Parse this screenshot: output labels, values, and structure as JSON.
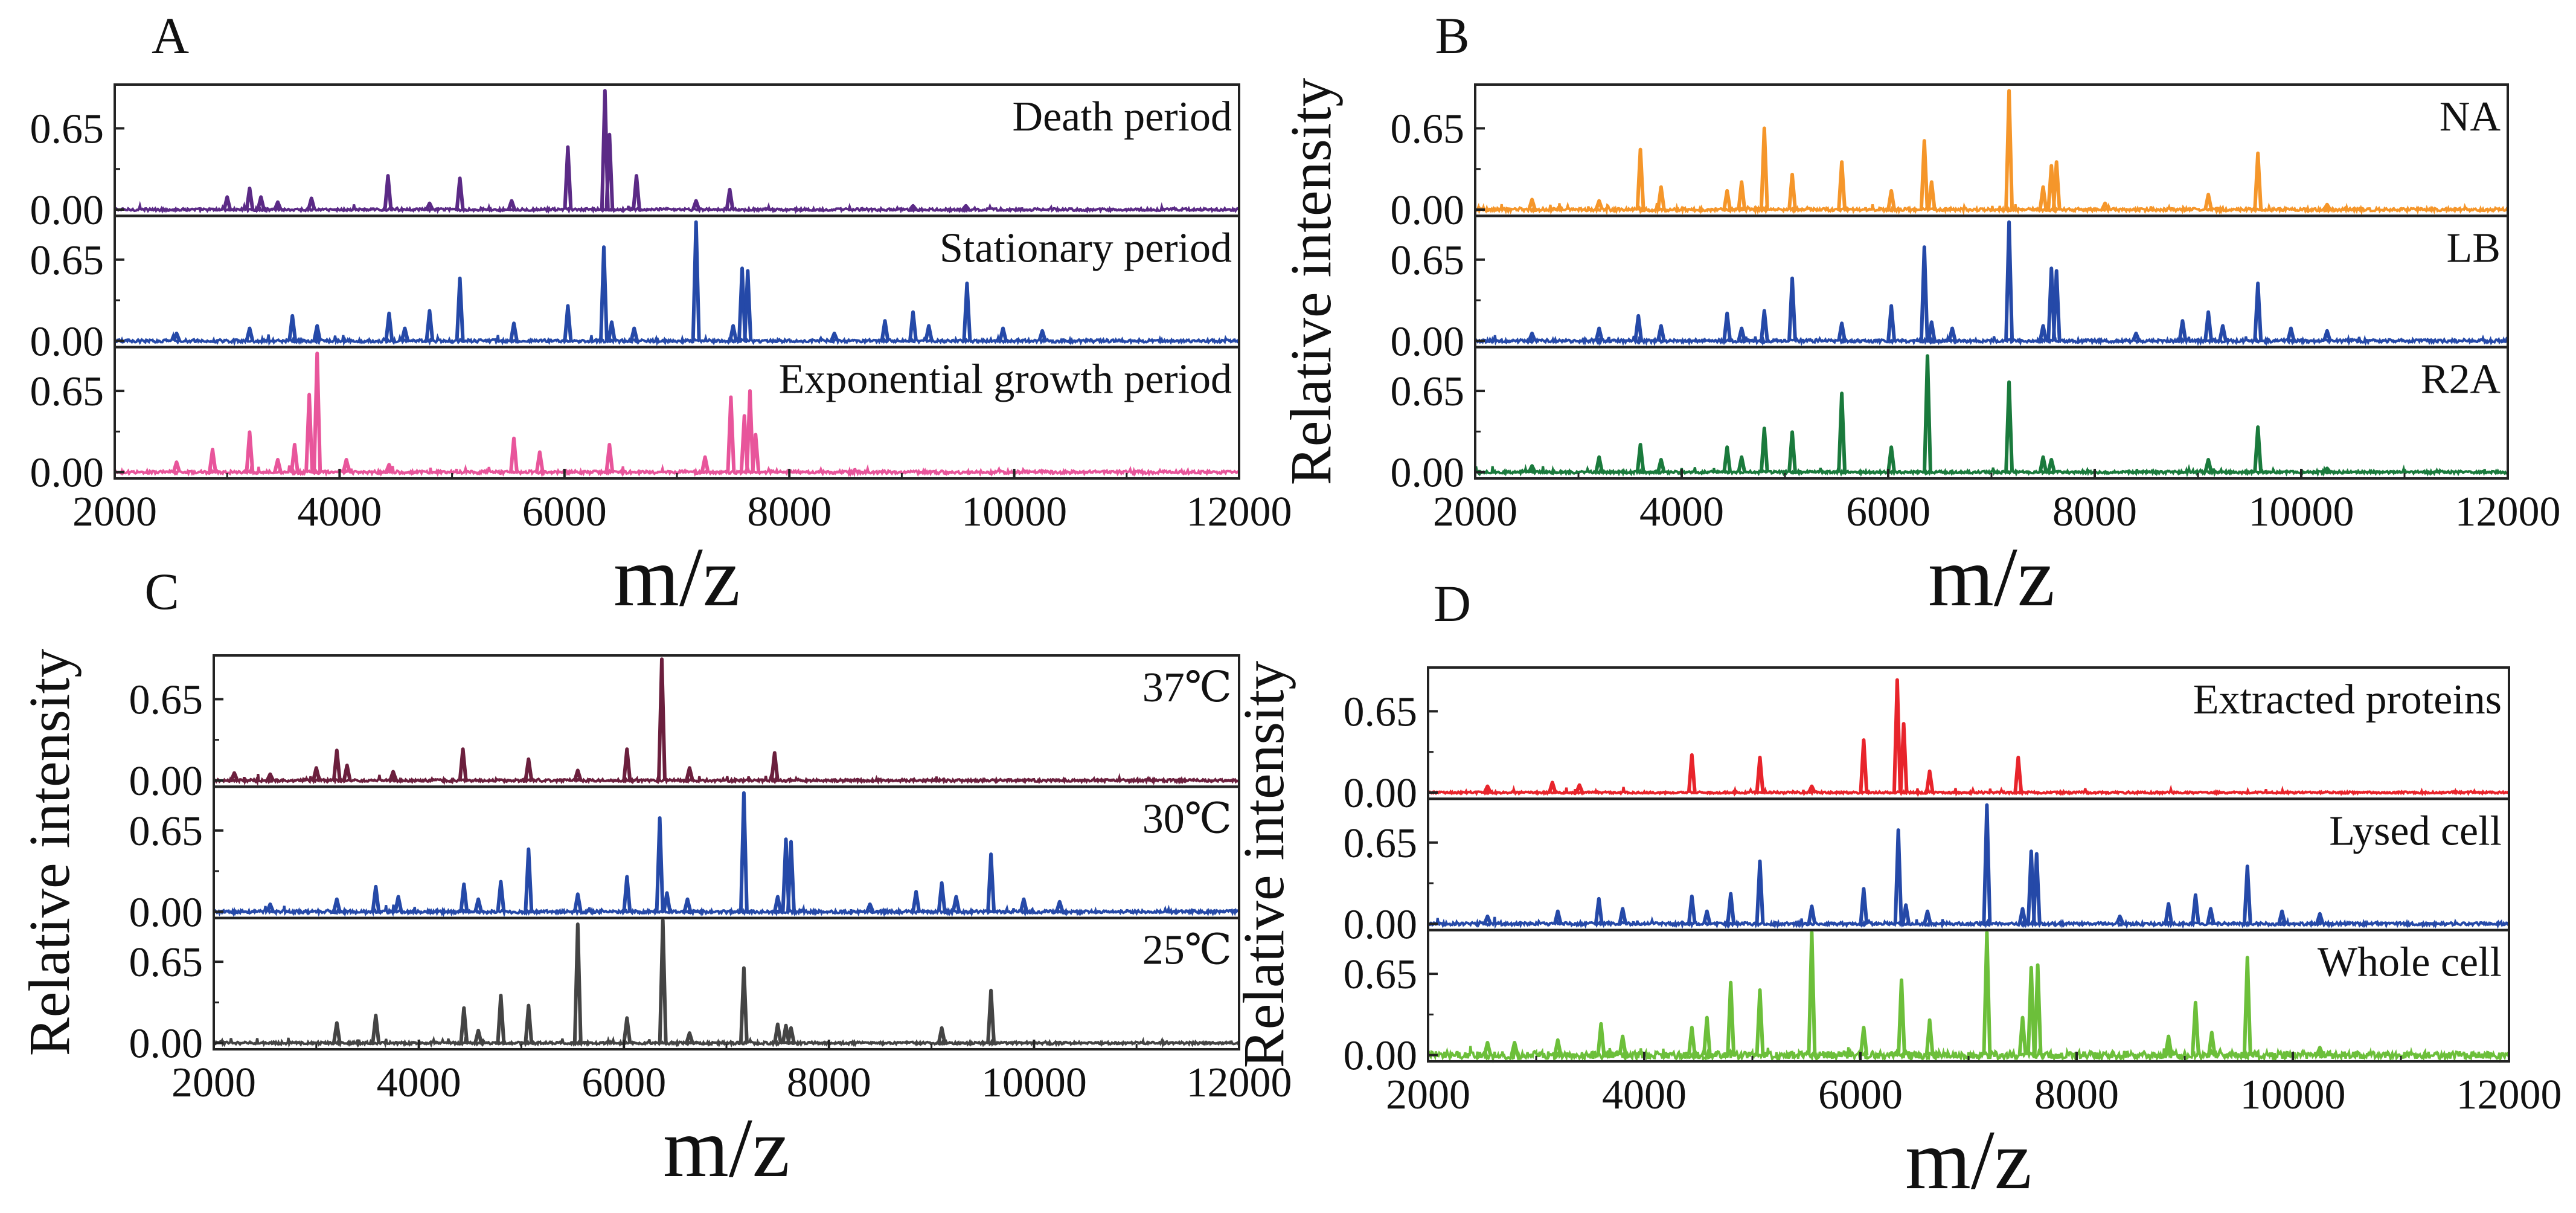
{
  "figure": {
    "panel_letters": [
      "A",
      "B",
      "C",
      "D"
    ],
    "ylabel": "Relative intensity",
    "xlabel": "m/z",
    "xticks": [
      "2000",
      "4000",
      "6000",
      "8000",
      "10000",
      "12000"
    ],
    "yticks": [
      "0.65",
      "0.00"
    ]
  },
  "chart_data": [
    {
      "panel": "A",
      "type": "line",
      "title": "",
      "xlabel": "m/z",
      "ylabel": "Relative intensity",
      "xlim": [
        2000,
        12000
      ],
      "ylim": [
        -0.05,
        1.0
      ],
      "series": [
        {
          "name": "Death period",
          "color": "#5b2a86",
          "baseline_noise": 0.01,
          "peaks": [
            [
              3000,
              0.1
            ],
            [
              3200,
              0.17
            ],
            [
              3300,
              0.1
            ],
            [
              3450,
              0.06
            ],
            [
              3750,
              0.09
            ],
            [
              4430,
              0.27
            ],
            [
              4800,
              0.05
            ],
            [
              5070,
              0.25
            ],
            [
              5530,
              0.07
            ],
            [
              6030,
              0.5
            ],
            [
              6360,
              0.95
            ],
            [
              6400,
              0.6
            ],
            [
              6640,
              0.27
            ],
            [
              7170,
              0.07
            ],
            [
              7470,
              0.16
            ],
            [
              9100,
              0.03
            ],
            [
              9570,
              0.03
            ]
          ]
        },
        {
          "name": "Stationary period",
          "color": "#2549a8",
          "baseline_noise": 0.012,
          "peaks": [
            [
              2550,
              0.06
            ],
            [
              3200,
              0.1
            ],
            [
              3580,
              0.2
            ],
            [
              3800,
              0.12
            ],
            [
              4440,
              0.22
            ],
            [
              4580,
              0.1
            ],
            [
              4800,
              0.24
            ],
            [
              5070,
              0.5
            ],
            [
              5550,
              0.14
            ],
            [
              6030,
              0.28
            ],
            [
              6350,
              0.75
            ],
            [
              6420,
              0.15
            ],
            [
              6620,
              0.1
            ],
            [
              7170,
              0.95
            ],
            [
              7500,
              0.12
            ],
            [
              7580,
              0.58
            ],
            [
              7630,
              0.56
            ],
            [
              8400,
              0.06
            ],
            [
              8850,
              0.16
            ],
            [
              9100,
              0.23
            ],
            [
              9240,
              0.12
            ],
            [
              9580,
              0.46
            ],
            [
              9900,
              0.1
            ],
            [
              10250,
              0.08
            ]
          ]
        },
        {
          "name": "Exponential growth period",
          "color": "#e8559b",
          "baseline_noise": 0.012,
          "peaks": [
            [
              2550,
              0.08
            ],
            [
              2870,
              0.18
            ],
            [
              3200,
              0.32
            ],
            [
              3450,
              0.1
            ],
            [
              3600,
              0.22
            ],
            [
              3730,
              0.62
            ],
            [
              3800,
              0.95
            ],
            [
              4060,
              0.1
            ],
            [
              4440,
              0.06
            ],
            [
              5550,
              0.27
            ],
            [
              5780,
              0.16
            ],
            [
              6400,
              0.22
            ],
            [
              7250,
              0.12
            ],
            [
              7480,
              0.6
            ],
            [
              7600,
              0.45
            ],
            [
              7650,
              0.65
            ],
            [
              7700,
              0.3
            ]
          ]
        }
      ]
    },
    {
      "panel": "B",
      "type": "line",
      "title": "",
      "xlabel": "m/z",
      "ylabel": "Relative intensity",
      "xlim": [
        2000,
        12000
      ],
      "ylim": [
        -0.05,
        1.0
      ],
      "series": [
        {
          "name": "NA",
          "color": "#f5962a",
          "baseline_noise": 0.012,
          "peaks": [
            [
              2550,
              0.08
            ],
            [
              3200,
              0.07
            ],
            [
              3600,
              0.48
            ],
            [
              3800,
              0.18
            ],
            [
              4440,
              0.15
            ],
            [
              4580,
              0.22
            ],
            [
              4800,
              0.65
            ],
            [
              5070,
              0.28
            ],
            [
              5550,
              0.38
            ],
            [
              6030,
              0.15
            ],
            [
              6350,
              0.55
            ],
            [
              6420,
              0.22
            ],
            [
              7170,
              0.95
            ],
            [
              7500,
              0.18
            ],
            [
              7580,
              0.35
            ],
            [
              7630,
              0.38
            ],
            [
              8100,
              0.05
            ],
            [
              9100,
              0.12
            ],
            [
              9580,
              0.45
            ],
            [
              10250,
              0.04
            ]
          ]
        },
        {
          "name": "LB",
          "color": "#2549a8",
          "baseline_noise": 0.012,
          "peaks": [
            [
              2550,
              0.06
            ],
            [
              3200,
              0.1
            ],
            [
              3580,
              0.2
            ],
            [
              3800,
              0.12
            ],
            [
              4440,
              0.22
            ],
            [
              4580,
              0.1
            ],
            [
              4800,
              0.24
            ],
            [
              5070,
              0.5
            ],
            [
              5550,
              0.14
            ],
            [
              6030,
              0.28
            ],
            [
              6350,
              0.75
            ],
            [
              6420,
              0.15
            ],
            [
              6620,
              0.1
            ],
            [
              7170,
              0.95
            ],
            [
              7500,
              0.12
            ],
            [
              7580,
              0.58
            ],
            [
              7630,
              0.56
            ],
            [
              8400,
              0.06
            ],
            [
              8850,
              0.16
            ],
            [
              9100,
              0.23
            ],
            [
              9240,
              0.12
            ],
            [
              9580,
              0.46
            ],
            [
              9900,
              0.1
            ],
            [
              10250,
              0.08
            ]
          ]
        },
        {
          "name": "R2A",
          "color": "#1a7a3c",
          "baseline_noise": 0.01,
          "peaks": [
            [
              2550,
              0.05
            ],
            [
              3200,
              0.12
            ],
            [
              3600,
              0.22
            ],
            [
              3800,
              0.1
            ],
            [
              4440,
              0.2
            ],
            [
              4580,
              0.12
            ],
            [
              4800,
              0.35
            ],
            [
              5070,
              0.32
            ],
            [
              5550,
              0.63
            ],
            [
              6030,
              0.2
            ],
            [
              6380,
              0.93
            ],
            [
              7170,
              0.72
            ],
            [
              7500,
              0.12
            ],
            [
              7580,
              0.1
            ],
            [
              9100,
              0.1
            ],
            [
              9580,
              0.36
            ],
            [
              10250,
              0.03
            ]
          ]
        }
      ]
    },
    {
      "panel": "C",
      "type": "line",
      "title": "",
      "xlabel": "m/z",
      "ylabel": "Relative intensity",
      "xlim": [
        2000,
        12000
      ],
      "ylim": [
        -0.05,
        1.0
      ],
      "series": [
        {
          "name": "37℃",
          "color": "#6b1f3d",
          "baseline_noise": 0.01,
          "peaks": [
            [
              2200,
              0.06
            ],
            [
              2550,
              0.05
            ],
            [
              3000,
              0.1
            ],
            [
              3200,
              0.24
            ],
            [
              3300,
              0.12
            ],
            [
              3750,
              0.07
            ],
            [
              4430,
              0.25
            ],
            [
              5070,
              0.17
            ],
            [
              5550,
              0.08
            ],
            [
              6030,
              0.25
            ],
            [
              6370,
              0.97
            ],
            [
              6640,
              0.1
            ],
            [
              7470,
              0.22
            ]
          ]
        },
        {
          "name": "30℃",
          "color": "#2549a8",
          "baseline_noise": 0.012,
          "peaks": [
            [
              2550,
              0.06
            ],
            [
              3200,
              0.1
            ],
            [
              3580,
              0.2
            ],
            [
              3800,
              0.12
            ],
            [
              4440,
              0.22
            ],
            [
              4580,
              0.1
            ],
            [
              4800,
              0.24
            ],
            [
              5070,
              0.5
            ],
            [
              5550,
              0.14
            ],
            [
              6030,
              0.28
            ],
            [
              6350,
              0.75
            ],
            [
              6420,
              0.15
            ],
            [
              6620,
              0.1
            ],
            [
              7170,
              0.95
            ],
            [
              7500,
              0.12
            ],
            [
              7580,
              0.58
            ],
            [
              7630,
              0.56
            ],
            [
              8400,
              0.06
            ],
            [
              8850,
              0.16
            ],
            [
              9100,
              0.23
            ],
            [
              9240,
              0.12
            ],
            [
              9580,
              0.46
            ],
            [
              9900,
              0.1
            ],
            [
              10250,
              0.08
            ]
          ]
        },
        {
          "name": "25℃",
          "color": "#444444",
          "baseline_noise": 0.01,
          "peaks": [
            [
              3200,
              0.16
            ],
            [
              3580,
              0.22
            ],
            [
              4440,
              0.28
            ],
            [
              4580,
              0.1
            ],
            [
              4800,
              0.38
            ],
            [
              5070,
              0.3
            ],
            [
              5550,
              0.95
            ],
            [
              6030,
              0.2
            ],
            [
              6380,
              0.98
            ],
            [
              6640,
              0.08
            ],
            [
              7170,
              0.6
            ],
            [
              7500,
              0.15
            ],
            [
              7580,
              0.14
            ],
            [
              7630,
              0.12
            ],
            [
              9100,
              0.12
            ],
            [
              9580,
              0.42
            ]
          ]
        }
      ]
    },
    {
      "panel": "D",
      "type": "line",
      "title": "",
      "xlabel": "m/z",
      "ylabel": "Relative intensity",
      "xlim": [
        2000,
        12000
      ],
      "ylim": [
        -0.05,
        1.0
      ],
      "series": [
        {
          "name": "Extracted proteins",
          "color": "#e8242b",
          "baseline_noise": 0.008,
          "peaks": [
            [
              2550,
              0.05
            ],
            [
              3150,
              0.08
            ],
            [
              3400,
              0.06
            ],
            [
              4440,
              0.3
            ],
            [
              5070,
              0.28
            ],
            [
              5550,
              0.05
            ],
            [
              6030,
              0.42
            ],
            [
              6340,
              0.9
            ],
            [
              6400,
              0.55
            ],
            [
              6640,
              0.17
            ],
            [
              7460,
              0.28
            ]
          ]
        },
        {
          "name": "Lysed cell",
          "color": "#2549a8",
          "baseline_noise": 0.012,
          "peaks": [
            [
              2550,
              0.06
            ],
            [
              3200,
              0.1
            ],
            [
              3580,
              0.2
            ],
            [
              3800,
              0.12
            ],
            [
              4440,
              0.22
            ],
            [
              4580,
              0.1
            ],
            [
              4800,
              0.24
            ],
            [
              5070,
              0.5
            ],
            [
              5550,
              0.14
            ],
            [
              6030,
              0.28
            ],
            [
              6350,
              0.75
            ],
            [
              6420,
              0.15
            ],
            [
              6620,
              0.1
            ],
            [
              7170,
              0.95
            ],
            [
              7500,
              0.12
            ],
            [
              7580,
              0.58
            ],
            [
              7630,
              0.56
            ],
            [
              8400,
              0.06
            ],
            [
              8850,
              0.16
            ],
            [
              9100,
              0.23
            ],
            [
              9240,
              0.12
            ],
            [
              9580,
              0.46
            ],
            [
              9900,
              0.1
            ],
            [
              10250,
              0.08
            ]
          ]
        },
        {
          "name": "Whole cell",
          "color": "#6cbf3a",
          "baseline_noise": 0.03,
          "peaks": [
            [
              2550,
              0.1
            ],
            [
              2800,
              0.1
            ],
            [
              3200,
              0.12
            ],
            [
              3600,
              0.25
            ],
            [
              3800,
              0.15
            ],
            [
              4440,
              0.22
            ],
            [
              4580,
              0.3
            ],
            [
              4800,
              0.58
            ],
            [
              5070,
              0.52
            ],
            [
              5550,
              0.98
            ],
            [
              6030,
              0.22
            ],
            [
              6380,
              0.6
            ],
            [
              6640,
              0.28
            ],
            [
              7170,
              0.98
            ],
            [
              7500,
              0.3
            ],
            [
              7580,
              0.7
            ],
            [
              7640,
              0.72
            ],
            [
              8850,
              0.15
            ],
            [
              9100,
              0.42
            ],
            [
              9250,
              0.18
            ],
            [
              9580,
              0.78
            ],
            [
              10250,
              0.06
            ]
          ]
        }
      ]
    }
  ]
}
